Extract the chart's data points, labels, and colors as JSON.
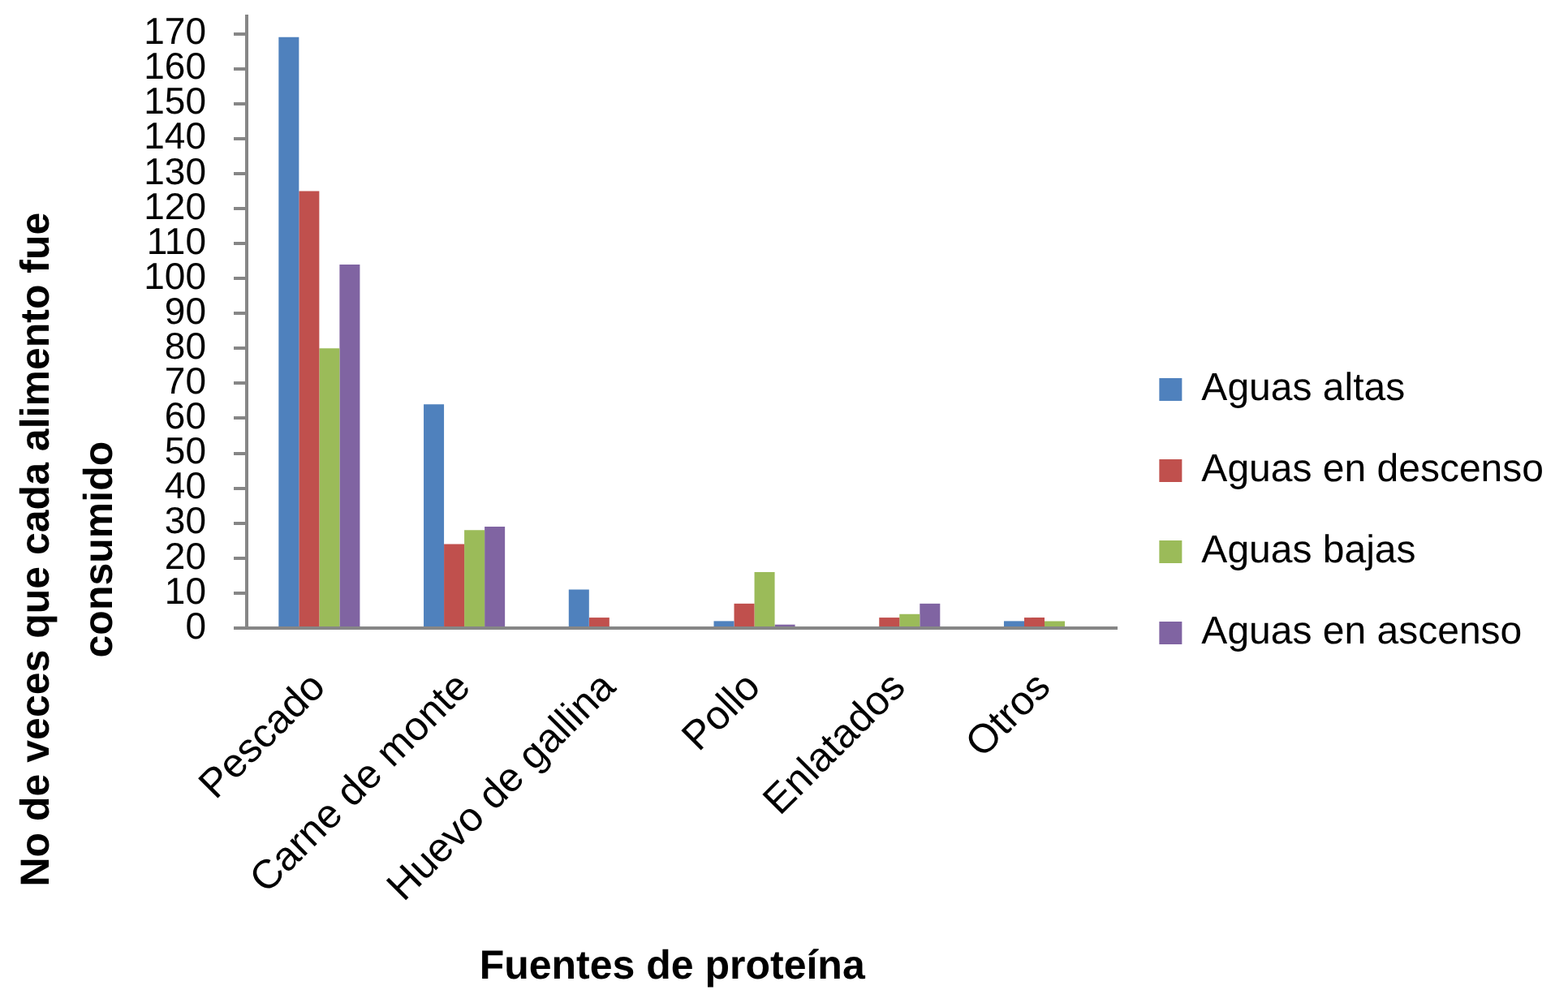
{
  "chart_data": {
    "type": "bar",
    "xlabel": "Fuentes de proteína",
    "ylabel": "No de veces que cada alimento fue consumido",
    "categories": [
      "Pescado",
      "Carne de monte",
      "Huevo de gallina",
      "Pollo",
      "Enlatados",
      "Otros"
    ],
    "series": [
      {
        "name": "Aguas altas",
        "color": "#4f81bd",
        "values": [
          169,
          64,
          11,
          2,
          0,
          2
        ]
      },
      {
        "name": "Aguas en descenso",
        "color": "#c0504d",
        "values": [
          125,
          24,
          3,
          7,
          3,
          3
        ]
      },
      {
        "name": "Aguas bajas",
        "color": "#9bbb59",
        "values": [
          80,
          28,
          0,
          16,
          4,
          2
        ]
      },
      {
        "name": "Aguas en ascenso",
        "color": "#8064a2",
        "values": [
          104,
          29,
          0,
          1,
          7,
          0
        ]
      }
    ],
    "ylim": [
      0,
      175
    ],
    "yticks": [
      0,
      10,
      20,
      30,
      40,
      50,
      60,
      70,
      80,
      90,
      100,
      110,
      120,
      130,
      140,
      150,
      160,
      170
    ],
    "grid": false,
    "legend": "right"
  }
}
